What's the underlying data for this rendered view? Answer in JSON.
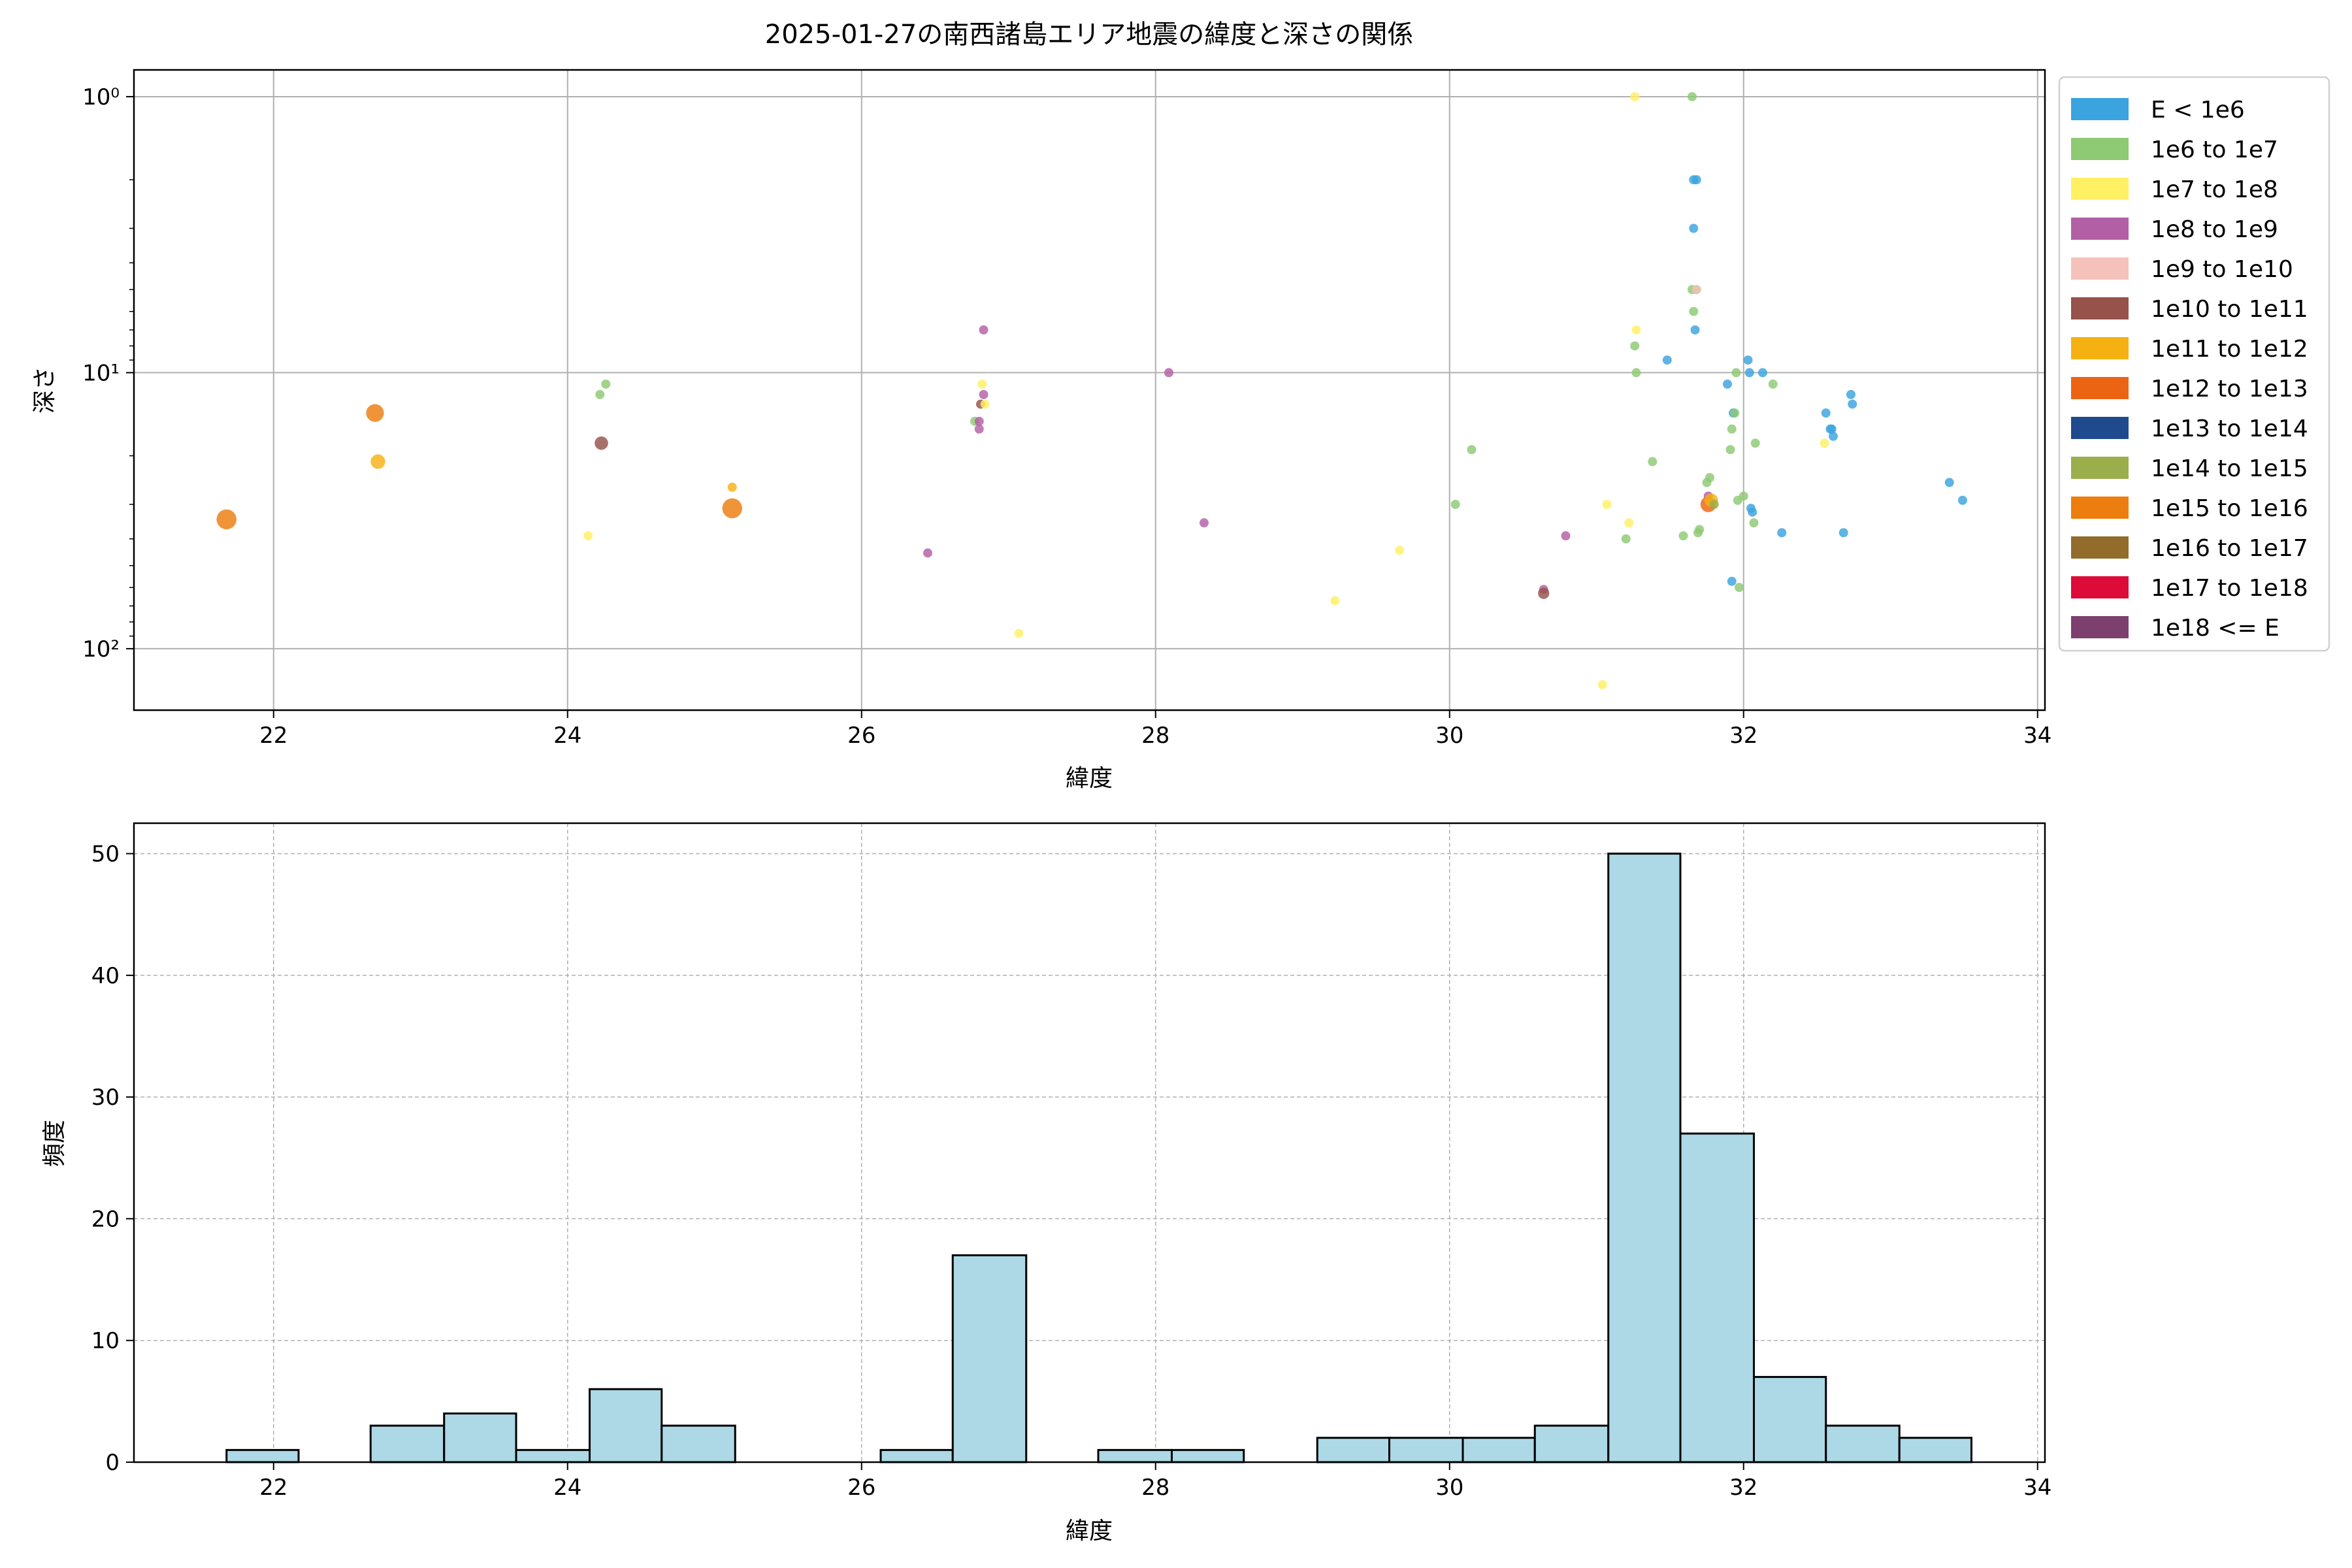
{
  "chart_data": [
    {
      "type": "scatter",
      "title": "2025-01-27の南西諸島エリア地震の緯度と深さの関係",
      "xlabel": "緯度",
      "ylabel": "深さ",
      "xlim": [
        21.05,
        34.05
      ],
      "ylim": [
        167,
        0.8
      ],
      "y_scale": "log",
      "y_inverted": true,
      "grid": true,
      "x_ticks": [
        22,
        24,
        26,
        28,
        30,
        32,
        34
      ],
      "y_ticks": [
        {
          "value": 1,
          "label": "10⁰"
        },
        {
          "value": 10,
          "label": "10¹"
        },
        {
          "value": 100,
          "label": "10²"
        }
      ],
      "legend_position": "outside-right",
      "legend": [
        {
          "label": "E < 1e6",
          "color": "#3ba3de"
        },
        {
          "label": "1e6 to 1e7",
          "color": "#8ec974"
        },
        {
          "label": "1e7 to 1e8",
          "color": "#fff064"
        },
        {
          "label": "1e8 to 1e9",
          "color": "#b35fa5"
        },
        {
          "label": "1e9 to 1e10",
          "color": "#f5c2bb"
        },
        {
          "label": "1e10 to 1e11",
          "color": "#96524b"
        },
        {
          "label": "1e11 to 1e12",
          "color": "#f5b112"
        },
        {
          "label": "1e12 to 1e13",
          "color": "#eb6413"
        },
        {
          "label": "1e13 to 1e14",
          "color": "#1f4a8d"
        },
        {
          "label": "1e14 to 1e15",
          "color": "#9aae4b"
        },
        {
          "label": "1e15 to 1e16",
          "color": "#ed7d0f"
        },
        {
          "label": "1e16 to 1e17",
          "color": "#926c2a"
        },
        {
          "label": "1e17 to 1e18",
          "color": "#dc0b38"
        },
        {
          "label": "1e18 <= E",
          "color": "#7c3f6e"
        }
      ],
      "points": [
        {
          "x": 21.68,
          "y": 34,
          "c": "#ed7d0f",
          "s": 1.0
        },
        {
          "x": 22.69,
          "y": 14,
          "c": "#ed7d0f",
          "s": 0.9
        },
        {
          "x": 22.71,
          "y": 21,
          "c": "#f5b112",
          "s": 0.75
        },
        {
          "x": 24.14,
          "y": 39,
          "c": "#fff064",
          "s": 0.5
        },
        {
          "x": 24.22,
          "y": 12,
          "c": "#8ec974",
          "s": 0.5
        },
        {
          "x": 24.26,
          "y": 11,
          "c": "#8ec974",
          "s": 0.5
        },
        {
          "x": 24.23,
          "y": 18,
          "c": "#96524b",
          "s": 0.7
        },
        {
          "x": 25.12,
          "y": 26,
          "c": "#f5b112",
          "s": 0.5
        },
        {
          "x": 25.12,
          "y": 31,
          "c": "#ed7d0f",
          "s": 1.0
        },
        {
          "x": 26.45,
          "y": 45,
          "c": "#b35fa5",
          "s": 0.5
        },
        {
          "x": 26.77,
          "y": 15,
          "c": "#8ec974",
          "s": 0.5
        },
        {
          "x": 26.8,
          "y": 16,
          "c": "#b35fa5",
          "s": 0.5
        },
        {
          "x": 26.8,
          "y": 15,
          "c": "#b35fa5",
          "s": 0.5
        },
        {
          "x": 26.81,
          "y": 13,
          "c": "#96524b",
          "s": 0.5
        },
        {
          "x": 26.82,
          "y": 11,
          "c": "#fff064",
          "s": 0.5
        },
        {
          "x": 26.83,
          "y": 12,
          "c": "#b35fa5",
          "s": 0.5
        },
        {
          "x": 26.84,
          "y": 13,
          "c": "#fff064",
          "s": 0.5
        },
        {
          "x": 26.83,
          "y": 7,
          "c": "#b35fa5",
          "s": 0.5
        },
        {
          "x": 27.07,
          "y": 88,
          "c": "#fff064",
          "s": 0.5
        },
        {
          "x": 28.09,
          "y": 10,
          "c": "#b35fa5",
          "s": 0.5
        },
        {
          "x": 28.33,
          "y": 35,
          "c": "#b35fa5",
          "s": 0.5
        },
        {
          "x": 29.22,
          "y": 67,
          "c": "#fff064",
          "s": 0.5
        },
        {
          "x": 29.66,
          "y": 44,
          "c": "#fff064",
          "s": 0.5
        },
        {
          "x": 30.04,
          "y": 30,
          "c": "#8ec974",
          "s": 0.5
        },
        {
          "x": 30.15,
          "y": 19,
          "c": "#8ec974",
          "s": 0.5
        },
        {
          "x": 30.64,
          "y": 61,
          "c": "#b35fa5",
          "s": 0.5
        },
        {
          "x": 30.64,
          "y": 63,
          "c": "#96524b",
          "s": 0.6
        },
        {
          "x": 30.79,
          "y": 39,
          "c": "#b35fa5",
          "s": 0.5
        },
        {
          "x": 31.04,
          "y": 135,
          "c": "#fff064",
          "s": 0.5
        },
        {
          "x": 31.07,
          "y": 30,
          "c": "#fff064",
          "s": 0.5
        },
        {
          "x": 31.2,
          "y": 40,
          "c": "#8ec974",
          "s": 0.5
        },
        {
          "x": 31.22,
          "y": 35,
          "c": "#fff064",
          "s": 0.5
        },
        {
          "x": 31.26,
          "y": 1,
          "c": "#fff064",
          "s": 0.5
        },
        {
          "x": 31.27,
          "y": 7,
          "c": "#fff064",
          "s": 0.5
        },
        {
          "x": 31.26,
          "y": 8,
          "c": "#8ec974",
          "s": 0.5
        },
        {
          "x": 31.27,
          "y": 10,
          "c": "#8ec974",
          "s": 0.5
        },
        {
          "x": 31.38,
          "y": 21,
          "c": "#8ec974",
          "s": 0.5
        },
        {
          "x": 31.48,
          "y": 9,
          "c": "#3ba3de",
          "s": 0.5
        },
        {
          "x": 31.59,
          "y": 39,
          "c": "#8ec974",
          "s": 0.5
        },
        {
          "x": 31.65,
          "y": 1,
          "c": "#8ec974",
          "s": 0.5
        },
        {
          "x": 31.66,
          "y": 2,
          "c": "#3ba3de",
          "s": 0.5
        },
        {
          "x": 31.68,
          "y": 2,
          "c": "#3ba3de",
          "s": 0.5
        },
        {
          "x": 31.66,
          "y": 3,
          "c": "#3ba3de",
          "s": 0.5
        },
        {
          "x": 31.65,
          "y": 5,
          "c": "#8ec974",
          "s": 0.5
        },
        {
          "x": 31.68,
          "y": 5,
          "c": "#8ec974",
          "s": 0.5
        },
        {
          "x": 31.66,
          "y": 6,
          "c": "#8ec974",
          "s": 0.5
        },
        {
          "x": 31.67,
          "y": 7,
          "c": "#3ba3de",
          "s": 0.5
        },
        {
          "x": 31.68,
          "y": 5,
          "c": "#f5c2bb",
          "s": 0.5
        },
        {
          "x": 31.69,
          "y": 38,
          "c": "#8ec974",
          "s": 0.5
        },
        {
          "x": 31.7,
          "y": 37,
          "c": "#8ec974",
          "s": 0.5
        },
        {
          "x": 31.75,
          "y": 25,
          "c": "#8ec974",
          "s": 0.5
        },
        {
          "x": 31.77,
          "y": 24,
          "c": "#8ec974",
          "s": 0.5
        },
        {
          "x": 31.76,
          "y": 28,
          "c": "#b35fa5",
          "s": 0.5
        },
        {
          "x": 31.76,
          "y": 30,
          "c": "#eb6413",
          "s": 0.8
        },
        {
          "x": 31.78,
          "y": 29,
          "c": "#f5b112",
          "s": 0.7
        },
        {
          "x": 31.8,
          "y": 30,
          "c": "#9aae4b",
          "s": 0.5
        },
        {
          "x": 31.89,
          "y": 11,
          "c": "#3ba3de",
          "s": 0.5
        },
        {
          "x": 31.91,
          "y": 19,
          "c": "#8ec974",
          "s": 0.5
        },
        {
          "x": 31.92,
          "y": 57,
          "c": "#3ba3de",
          "s": 0.5
        },
        {
          "x": 31.92,
          "y": 16,
          "c": "#8ec974",
          "s": 0.5
        },
        {
          "x": 31.93,
          "y": 14,
          "c": "#3ba3de",
          "s": 0.5
        },
        {
          "x": 31.94,
          "y": 14,
          "c": "#8ec974",
          "s": 0.5
        },
        {
          "x": 31.95,
          "y": 10,
          "c": "#8ec974",
          "s": 0.5
        },
        {
          "x": 31.96,
          "y": 29,
          "c": "#8ec974",
          "s": 0.5
        },
        {
          "x": 31.97,
          "y": 60,
          "c": "#8ec974",
          "s": 0.5
        },
        {
          "x": 32.0,
          "y": 28,
          "c": "#8ec974",
          "s": 0.5
        },
        {
          "x": 32.03,
          "y": 9,
          "c": "#3ba3de",
          "s": 0.5
        },
        {
          "x": 32.04,
          "y": 10,
          "c": "#3ba3de",
          "s": 0.5
        },
        {
          "x": 32.05,
          "y": 31,
          "c": "#3ba3de",
          "s": 0.5
        },
        {
          "x": 32.06,
          "y": 32,
          "c": "#3ba3de",
          "s": 0.5
        },
        {
          "x": 32.07,
          "y": 35,
          "c": "#8ec974",
          "s": 0.5
        },
        {
          "x": 32.08,
          "y": 18,
          "c": "#8ec974",
          "s": 0.5
        },
        {
          "x": 32.13,
          "y": 10,
          "c": "#3ba3de",
          "s": 0.5
        },
        {
          "x": 32.2,
          "y": 11,
          "c": "#8ec974",
          "s": 0.5
        },
        {
          "x": 32.26,
          "y": 38,
          "c": "#3ba3de",
          "s": 0.5
        },
        {
          "x": 32.55,
          "y": 18,
          "c": "#fff064",
          "s": 0.5
        },
        {
          "x": 32.56,
          "y": 14,
          "c": "#3ba3de",
          "s": 0.5
        },
        {
          "x": 32.59,
          "y": 16,
          "c": "#3ba3de",
          "s": 0.5
        },
        {
          "x": 32.6,
          "y": 16,
          "c": "#3ba3de",
          "s": 0.5
        },
        {
          "x": 32.61,
          "y": 17,
          "c": "#3ba3de",
          "s": 0.5
        },
        {
          "x": 32.68,
          "y": 38,
          "c": "#3ba3de",
          "s": 0.5
        },
        {
          "x": 32.73,
          "y": 12,
          "c": "#3ba3de",
          "s": 0.5
        },
        {
          "x": 32.74,
          "y": 13,
          "c": "#3ba3de",
          "s": 0.5
        },
        {
          "x": 33.4,
          "y": 25,
          "c": "#3ba3de",
          "s": 0.5
        },
        {
          "x": 33.49,
          "y": 29,
          "c": "#3ba3de",
          "s": 0.5
        }
      ]
    },
    {
      "type": "bar",
      "title": "",
      "xlabel": "緯度",
      "ylabel": "頻度",
      "xlim": [
        21.05,
        34.05
      ],
      "ylim": [
        0,
        52.5
      ],
      "grid": true,
      "bar_color": "#add8e6",
      "x_ticks": [
        22,
        24,
        26,
        28,
        30,
        32,
        34
      ],
      "y_ticks": [
        0,
        10,
        20,
        30,
        40,
        50
      ],
      "bins": [
        {
          "x0": 21.68,
          "x1": 22.17,
          "count": 1
        },
        {
          "x0": 22.17,
          "x1": 22.66,
          "count": 0
        },
        {
          "x0": 22.66,
          "x1": 23.16,
          "count": 3
        },
        {
          "x0": 23.16,
          "x1": 23.65,
          "count": 4
        },
        {
          "x0": 23.65,
          "x1": 24.15,
          "count": 1
        },
        {
          "x0": 24.15,
          "x1": 24.64,
          "count": 6
        },
        {
          "x0": 24.64,
          "x1": 25.14,
          "count": 3
        },
        {
          "x0": 25.14,
          "x1": 25.63,
          "count": 0
        },
        {
          "x0": 25.63,
          "x1": 26.13,
          "count": 0
        },
        {
          "x0": 26.13,
          "x1": 26.62,
          "count": 1
        },
        {
          "x0": 26.62,
          "x1": 27.12,
          "count": 17
        },
        {
          "x0": 27.12,
          "x1": 27.61,
          "count": 0
        },
        {
          "x0": 27.61,
          "x1": 28.11,
          "count": 1
        },
        {
          "x0": 28.11,
          "x1": 28.6,
          "count": 1
        },
        {
          "x0": 28.6,
          "x1": 29.1,
          "count": 0
        },
        {
          "x0": 29.1,
          "x1": 29.59,
          "count": 2
        },
        {
          "x0": 29.59,
          "x1": 30.09,
          "count": 2
        },
        {
          "x0": 30.09,
          "x1": 30.58,
          "count": 2
        },
        {
          "x0": 30.58,
          "x1": 31.08,
          "count": 3
        },
        {
          "x0": 31.08,
          "x1": 31.57,
          "count": 50
        },
        {
          "x0": 31.57,
          "x1": 32.07,
          "count": 27
        },
        {
          "x0": 32.07,
          "x1": 32.56,
          "count": 7
        },
        {
          "x0": 32.56,
          "x1": 33.06,
          "count": 3
        },
        {
          "x0": 33.06,
          "x1": 33.55,
          "count": 2
        }
      ]
    }
  ]
}
